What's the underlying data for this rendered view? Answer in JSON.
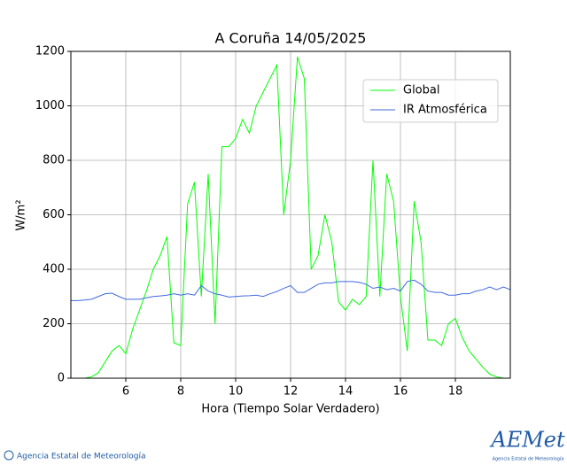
{
  "chart_data": {
    "type": "line",
    "title": "A Coruña 14/05/2025",
    "xlabel": "Hora (Tiempo Solar Verdadero)",
    "ylabel": "W/m²",
    "x": [
      4,
      4.25,
      4.5,
      4.75,
      5,
      5.25,
      5.5,
      5.75,
      6,
      6.25,
      6.5,
      6.75,
      7,
      7.25,
      7.5,
      7.75,
      8,
      8.25,
      8.5,
      8.75,
      9,
      9.25,
      9.5,
      9.75,
      10,
      10.25,
      10.5,
      10.75,
      11,
      11.25,
      11.5,
      11.75,
      12,
      12.25,
      12.5,
      12.75,
      13,
      13.25,
      13.5,
      13.75,
      14,
      14.25,
      14.5,
      14.75,
      15,
      15.25,
      15.5,
      15.75,
      16,
      16.25,
      16.5,
      16.75,
      17,
      17.25,
      17.5,
      17.75,
      18,
      18.25,
      18.5,
      18.75,
      19,
      19.25,
      19.5,
      19.75,
      20
    ],
    "series": [
      {
        "name": "Global",
        "color": "#00ff00",
        "values": [
          0,
          0,
          0,
          5,
          20,
          60,
          100,
          120,
          90,
          180,
          250,
          320,
          400,
          450,
          520,
          130,
          120,
          640,
          720,
          300,
          750,
          200,
          850,
          850,
          880,
          950,
          900,
          1000,
          1050,
          1100,
          1150,
          600,
          800,
          1180,
          1100,
          400,
          450,
          600,
          500,
          280,
          250,
          290,
          270,
          300,
          800,
          300,
          750,
          650,
          300,
          100,
          650,
          500,
          140,
          140,
          120,
          200,
          220,
          150,
          100,
          70,
          40,
          15,
          5,
          0,
          0
        ]
      },
      {
        "name": "IR Atmosférica",
        "color": "#4169e1",
        "values": [
          285,
          285,
          287,
          290,
          300,
          310,
          312,
          300,
          290,
          290,
          290,
          295,
          300,
          302,
          305,
          310,
          305,
          310,
          305,
          340,
          320,
          310,
          305,
          298,
          300,
          302,
          303,
          305,
          300,
          310,
          318,
          330,
          340,
          315,
          315,
          330,
          345,
          350,
          350,
          355,
          355,
          355,
          352,
          345,
          330,
          335,
          325,
          330,
          320,
          355,
          360,
          345,
          320,
          315,
          315,
          305,
          305,
          310,
          310,
          320,
          325,
          335,
          325,
          335,
          325
        ]
      }
    ],
    "xlim": [
      4,
      20
    ],
    "xticks": [
      6,
      8,
      10,
      12,
      14,
      16,
      18
    ],
    "ylim": [
      0,
      1200
    ],
    "yticks": [
      0,
      200,
      400,
      600,
      800,
      1000,
      1200
    ],
    "grid": true,
    "legend": "upper right"
  },
  "footer": {
    "credit": "Agencia Estatal de Meteorología",
    "logo": "AEMet",
    "logo_caption": "Agencia Estatal de Meteorología"
  }
}
